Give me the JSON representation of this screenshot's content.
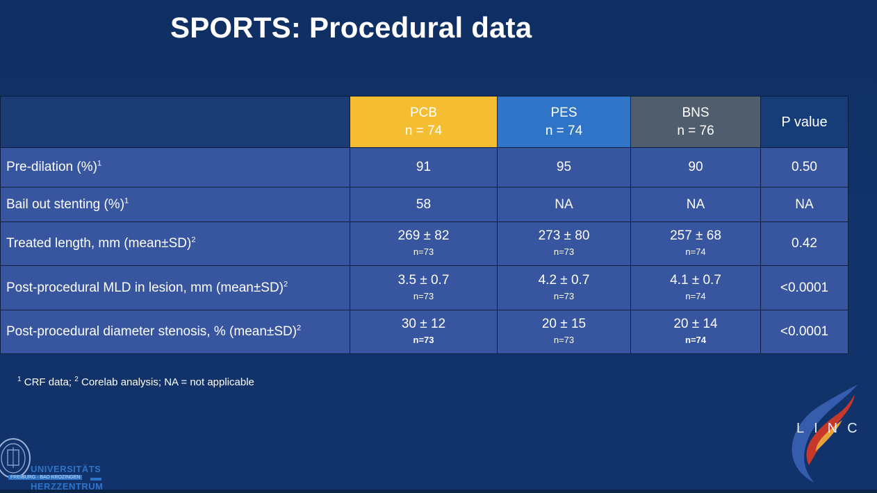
{
  "slide": {
    "title": "SPORTS: Procedural data"
  },
  "table": {
    "columns": [
      {
        "name": "PCB",
        "n": "n = 74",
        "color": "#f5bd32"
      },
      {
        "name": "PES",
        "n": "n = 74",
        "color": "#2f74c6"
      },
      {
        "name": "BNS",
        "n": "n = 76",
        "color": "#4f5d6c"
      },
      {
        "name": "P value"
      }
    ],
    "rows": [
      {
        "label": "Pre-dilation (%)",
        "label_sup": "1",
        "pcb": "91",
        "pes": "95",
        "bns": "90",
        "p": "0.50"
      },
      {
        "label": "Bail out stenting (%)",
        "label_sup": "1",
        "pcb": "58",
        "pes": "NA",
        "bns": "NA",
        "p": "NA"
      },
      {
        "label": "Treated length, mm (mean±SD)",
        "label_sup": "2",
        "pcb": "269 ± 82",
        "pcb_n": "n=73",
        "pes": "273 ± 80",
        "pes_n": "n=73",
        "bns": "257 ± 68",
        "bns_n": "n=74",
        "p": "0.42"
      },
      {
        "label": "Post-procedural MLD in lesion, mm (mean±SD)",
        "label_sup": "2",
        "pcb": "3.5 ± 0.7",
        "pcb_n": "n=73",
        "pes": "4.2 ± 0.7",
        "pes_n": "n=73",
        "bns": "4.1 ± 0.7",
        "bns_n": "n=74",
        "p": "<0.0001"
      },
      {
        "label": "Post-procedural diameter stenosis, % (mean±SD)",
        "label_sup": "2",
        "pcb": "30 ± 12",
        "pcb_n": "n=73",
        "pes": "20 ± 15",
        "pes_n": "n=73",
        "bns": "20 ± 14",
        "bns_n": "n=74",
        "p": "<0.0001"
      }
    ]
  },
  "footnote": {
    "sup1": "1",
    "text1": " CRF data; ",
    "sup2": "2",
    "text2": " Corelab analysis; NA = not applicable"
  },
  "logos": {
    "linc": "LINC",
    "university_line1": "UNIVERSITÄTS",
    "university_line2": "FREIBURG · BAD KROZINGEN",
    "university_line3": "HERZZENTRUM"
  }
}
